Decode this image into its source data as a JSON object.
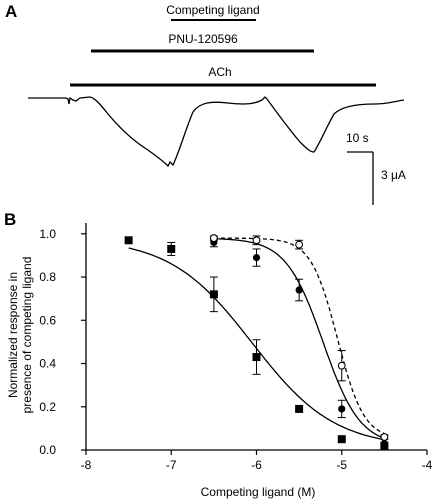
{
  "panel_a": {
    "label": "A",
    "bars": [
      {
        "label": "Competing ligand"
      },
      {
        "label": "PNU-120596"
      },
      {
        "label": "ACh"
      }
    ],
    "time_scale_label": "10 s",
    "current_scale_label": "3 μA"
  },
  "panel_b": {
    "label": "B"
  },
  "chart_data": {
    "type": "scatter",
    "xlabel": "Competing ligand (M)",
    "ylabel_line1": "Normalized response in",
    "ylabel_line2": "presence of competing ligand",
    "xlim": [
      -8,
      -4
    ],
    "ylim": [
      0,
      1.05
    ],
    "x_ticks": [
      -8,
      -7,
      -6,
      -5,
      -4
    ],
    "x_tick_labels": [
      "-8",
      "-7",
      "-6",
      "-5",
      "-4"
    ],
    "y_ticks": [
      0,
      0.2,
      0.4,
      0.6,
      0.8,
      1.0
    ],
    "y_tick_labels": [
      "0.0",
      "0.2",
      "0.4",
      "0.6",
      "0.8",
      "1.0"
    ],
    "series": [
      {
        "marker": "square-filled",
        "line": "solid",
        "points": [
          {
            "x": -7.5,
            "y": 0.97,
            "err": 0
          },
          {
            "x": -7.0,
            "y": 0.93,
            "err": 0.03
          },
          {
            "x": -6.5,
            "y": 0.72,
            "err": 0.08
          },
          {
            "x": -6.0,
            "y": 0.43,
            "err": 0.08
          },
          {
            "x": -5.5,
            "y": 0.19,
            "err": 0
          },
          {
            "x": -5.0,
            "y": 0.05,
            "err": 0
          },
          {
            "x": -4.5,
            "y": 0.02,
            "err": 0
          }
        ],
        "fit": {
          "top": 0.98,
          "bottom": 0.01,
          "log_ic50": -6.05,
          "hill": 0.9
        }
      },
      {
        "marker": "circle-filled",
        "line": "solid",
        "points": [
          {
            "x": -6.5,
            "y": 0.96,
            "err": 0.02
          },
          {
            "x": -6.0,
            "y": 0.89,
            "err": 0.04
          },
          {
            "x": -5.5,
            "y": 0.74,
            "err": 0.05
          },
          {
            "x": -5.0,
            "y": 0.19,
            "err": 0.04
          },
          {
            "x": -4.5,
            "y": 0.03,
            "err": 0
          }
        ],
        "fit": {
          "top": 0.98,
          "bottom": 0.02,
          "log_ic50": -5.22,
          "hill": 2.0
        }
      },
      {
        "marker": "circle-open",
        "line": "dashed",
        "points": [
          {
            "x": -6.5,
            "y": 0.98,
            "err": 0.01
          },
          {
            "x": -6.0,
            "y": 0.97,
            "err": 0.02
          },
          {
            "x": -5.5,
            "y": 0.95,
            "err": 0.02
          },
          {
            "x": -5.0,
            "y": 0.39,
            "err": 0.07
          },
          {
            "x": -4.5,
            "y": 0.06,
            "err": 0.01
          }
        ],
        "fit": {
          "top": 0.98,
          "bottom": 0.05,
          "log_ic50": -5.05,
          "hill": 2.8
        }
      }
    ]
  }
}
